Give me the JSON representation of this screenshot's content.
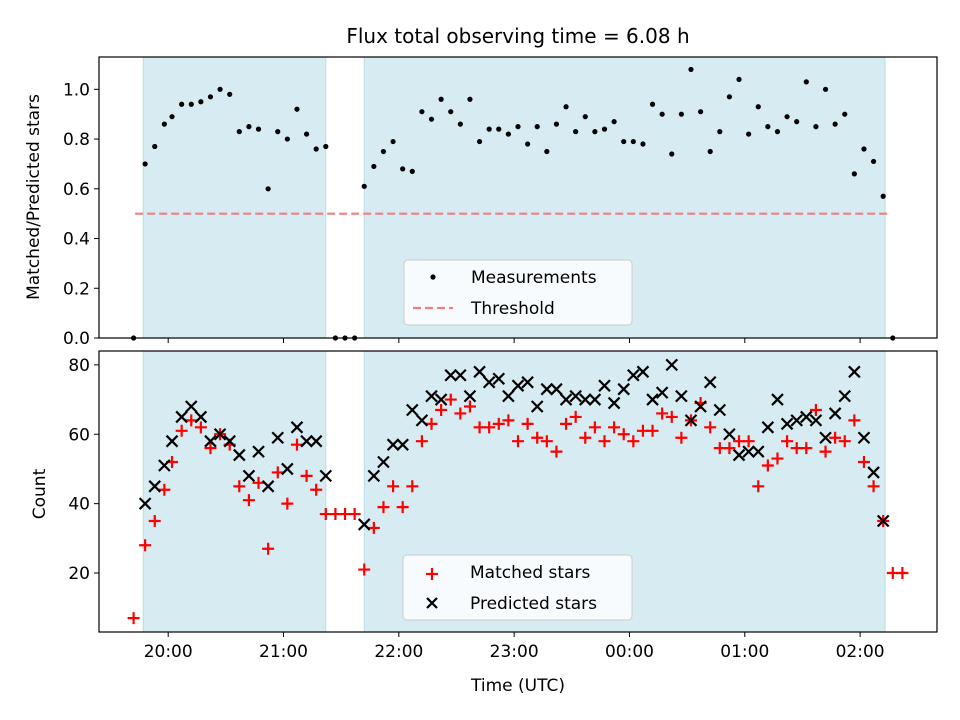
{
  "title": "Flux total observing time = 6.08 h",
  "xlabel": "Time (UTC)",
  "x_ticks": [
    "20:00",
    "21:00",
    "22:00",
    "23:00",
    "00:00",
    "01:00",
    "02:00"
  ],
  "colors": {
    "shade": "#add8e6",
    "threshold": "#f08080",
    "matched": "#ff0000",
    "predicted": "#000000",
    "measure": "#000000"
  },
  "chart_data": [
    {
      "type": "scatter",
      "ylabel": "Matched/Predicted stars",
      "yticks": [
        "0.0",
        "0.2",
        "0.4",
        "0.6",
        "0.8",
        "1.0"
      ],
      "ylim": [
        0,
        1.13
      ],
      "xlim": [
        "19:24",
        "02:40"
      ],
      "observing_windows": [
        [
          "19:47",
          "21:22"
        ],
        [
          "21:42",
          "02:13"
        ]
      ],
      "legend": [
        "Measurements",
        "Threshold"
      ],
      "threshold": 0.5,
      "series": [
        {
          "name": "Measurements",
          "points": [
            [
              "19:42",
              0.0
            ],
            [
              "19:48",
              0.7
            ],
            [
              "19:53",
              0.77
            ],
            [
              "19:58",
              0.86
            ],
            [
              "20:02",
              0.89
            ],
            [
              "20:07",
              0.94
            ],
            [
              "20:12",
              0.94
            ],
            [
              "20:17",
              0.95
            ],
            [
              "20:22",
              0.97
            ],
            [
              "20:27",
              1.0
            ],
            [
              "20:32",
              0.98
            ],
            [
              "20:37",
              0.83
            ],
            [
              "20:42",
              0.85
            ],
            [
              "20:47",
              0.84
            ],
            [
              "20:52",
              0.6
            ],
            [
              "20:57",
              0.83
            ],
            [
              "21:02",
              0.8
            ],
            [
              "21:07",
              0.92
            ],
            [
              "21:12",
              0.82
            ],
            [
              "21:17",
              0.76
            ],
            [
              "21:22",
              0.77
            ],
            [
              "21:27",
              0.0
            ],
            [
              "21:32",
              0.0
            ],
            [
              "21:37",
              0.0
            ],
            [
              "21:42",
              0.61
            ],
            [
              "21:47",
              0.69
            ],
            [
              "21:52",
              0.75
            ],
            [
              "21:57",
              0.79
            ],
            [
              "22:02",
              0.68
            ],
            [
              "22:07",
              0.67
            ],
            [
              "22:12",
              0.91
            ],
            [
              "22:17",
              0.88
            ],
            [
              "22:22",
              0.96
            ],
            [
              "22:27",
              0.91
            ],
            [
              "22:32",
              0.86
            ],
            [
              "22:37",
              0.96
            ],
            [
              "22:42",
              0.79
            ],
            [
              "22:47",
              0.84
            ],
            [
              "22:52",
              0.84
            ],
            [
              "22:57",
              0.82
            ],
            [
              "23:02",
              0.85
            ],
            [
              "23:07",
              0.78
            ],
            [
              "23:12",
              0.85
            ],
            [
              "23:17",
              0.75
            ],
            [
              "23:22",
              0.86
            ],
            [
              "23:27",
              0.93
            ],
            [
              "23:32",
              0.83
            ],
            [
              "23:37",
              0.89
            ],
            [
              "23:42",
              0.83
            ],
            [
              "23:47",
              0.84
            ],
            [
              "23:52",
              0.87
            ],
            [
              "23:57",
              0.79
            ],
            [
              "00:02",
              0.79
            ],
            [
              "00:07",
              0.78
            ],
            [
              "00:12",
              0.94
            ],
            [
              "00:17",
              0.9
            ],
            [
              "00:22",
              0.74
            ],
            [
              "00:27",
              0.9
            ],
            [
              "00:32",
              1.08
            ],
            [
              "00:37",
              0.91
            ],
            [
              "00:42",
              0.75
            ],
            [
              "00:47",
              0.83
            ],
            [
              "00:52",
              0.97
            ],
            [
              "00:57",
              1.04
            ],
            [
              "01:02",
              0.82
            ],
            [
              "01:07",
              0.93
            ],
            [
              "01:12",
              0.85
            ],
            [
              "01:17",
              0.83
            ],
            [
              "01:22",
              0.89
            ],
            [
              "01:27",
              0.87
            ],
            [
              "01:32",
              1.03
            ],
            [
              "01:37",
              0.85
            ],
            [
              "01:42",
              1.0
            ],
            [
              "01:47",
              0.86
            ],
            [
              "01:52",
              0.9
            ],
            [
              "01:57",
              0.66
            ],
            [
              "02:02",
              0.76
            ],
            [
              "02:07",
              0.71
            ],
            [
              "02:12",
              0.57
            ],
            [
              "02:17",
              0.0
            ]
          ]
        }
      ]
    },
    {
      "type": "scatter",
      "ylabel": "Count",
      "yticks": [
        "20",
        "40",
        "60",
        "80"
      ],
      "ylim": [
        3,
        84
      ],
      "xlim": [
        "19:24",
        "02:40"
      ],
      "observing_windows": [
        [
          "19:47",
          "21:22"
        ],
        [
          "21:42",
          "02:13"
        ]
      ],
      "legend": [
        "Matched stars",
        "Predicted stars"
      ],
      "series": [
        {
          "name": "Matched stars",
          "points": [
            [
              "19:42",
              7
            ],
            [
              "19:48",
              28
            ],
            [
              "19:53",
              35
            ],
            [
              "19:58",
              44
            ],
            [
              "20:02",
              52
            ],
            [
              "20:07",
              61
            ],
            [
              "20:12",
              64
            ],
            [
              "20:17",
              62
            ],
            [
              "20:22",
              56
            ],
            [
              "20:27",
              60
            ],
            [
              "20:32",
              57
            ],
            [
              "20:37",
              45
            ],
            [
              "20:42",
              41
            ],
            [
              "20:47",
              46
            ],
            [
              "20:52",
              27
            ],
            [
              "20:57",
              49
            ],
            [
              "21:02",
              40
            ],
            [
              "21:07",
              57
            ],
            [
              "21:12",
              48
            ],
            [
              "21:17",
              44
            ],
            [
              "21:22",
              37
            ],
            [
              "21:27",
              37
            ],
            [
              "21:32",
              37
            ],
            [
              "21:37",
              37
            ],
            [
              "21:42",
              21
            ],
            [
              "21:47",
              33
            ],
            [
              "21:52",
              39
            ],
            [
              "21:57",
              45
            ],
            [
              "22:02",
              39
            ],
            [
              "22:07",
              45
            ],
            [
              "22:12",
              58
            ],
            [
              "22:17",
              63
            ],
            [
              "22:22",
              67
            ],
            [
              "22:27",
              70
            ],
            [
              "22:32",
              66
            ],
            [
              "22:37",
              68
            ],
            [
              "22:42",
              62
            ],
            [
              "22:47",
              62
            ],
            [
              "22:52",
              63
            ],
            [
              "22:57",
              64
            ],
            [
              "23:02",
              58
            ],
            [
              "23:07",
              63
            ],
            [
              "23:12",
              59
            ],
            [
              "23:17",
              58
            ],
            [
              "23:22",
              55
            ],
            [
              "23:27",
              63
            ],
            [
              "23:32",
              65
            ],
            [
              "23:37",
              59
            ],
            [
              "23:42",
              62
            ],
            [
              "23:47",
              58
            ],
            [
              "23:52",
              62
            ],
            [
              "23:57",
              60
            ],
            [
              "00:02",
              58
            ],
            [
              "00:07",
              61
            ],
            [
              "00:12",
              61
            ],
            [
              "00:17",
              66
            ],
            [
              "00:22",
              65
            ],
            [
              "00:27",
              59
            ],
            [
              "00:32",
              64
            ],
            [
              "00:37",
              69
            ],
            [
              "00:42",
              62
            ],
            [
              "00:47",
              56
            ],
            [
              "00:52",
              56
            ],
            [
              "00:57",
              58
            ],
            [
              "01:02",
              58
            ],
            [
              "01:07",
              45
            ],
            [
              "01:12",
              51
            ],
            [
              "01:17",
              53
            ],
            [
              "01:22",
              58
            ],
            [
              "01:27",
              56
            ],
            [
              "01:32",
              56
            ],
            [
              "01:37",
              67
            ],
            [
              "01:42",
              55
            ],
            [
              "01:47",
              59
            ],
            [
              "01:52",
              58
            ],
            [
              "01:57",
              64
            ],
            [
              "02:02",
              52
            ],
            [
              "02:07",
              45
            ],
            [
              "02:12",
              35
            ],
            [
              "02:17",
              20
            ],
            [
              "02:22",
              20
            ]
          ]
        },
        {
          "name": "Predicted stars",
          "points": [
            [
              "19:48",
              40
            ],
            [
              "19:53",
              45
            ],
            [
              "19:58",
              51
            ],
            [
              "20:02",
              58
            ],
            [
              "20:07",
              65
            ],
            [
              "20:12",
              68
            ],
            [
              "20:17",
              65
            ],
            [
              "20:22",
              58
            ],
            [
              "20:27",
              60
            ],
            [
              "20:32",
              58
            ],
            [
              "20:37",
              54
            ],
            [
              "20:42",
              48
            ],
            [
              "20:47",
              55
            ],
            [
              "20:52",
              45
            ],
            [
              "20:57",
              59
            ],
            [
              "21:02",
              50
            ],
            [
              "21:07",
              62
            ],
            [
              "21:12",
              58
            ],
            [
              "21:17",
              58
            ],
            [
              "21:22",
              48
            ],
            [
              "21:42",
              34
            ],
            [
              "21:47",
              48
            ],
            [
              "21:52",
              52
            ],
            [
              "21:57",
              57
            ],
            [
              "22:02",
              57
            ],
            [
              "22:07",
              67
            ],
            [
              "22:12",
              64
            ],
            [
              "22:17",
              71
            ],
            [
              "22:22",
              70
            ],
            [
              "22:27",
              77
            ],
            [
              "22:32",
              77
            ],
            [
              "22:37",
              71
            ],
            [
              "22:42",
              78
            ],
            [
              "22:47",
              75
            ],
            [
              "22:52",
              76
            ],
            [
              "22:57",
              71
            ],
            [
              "23:02",
              74
            ],
            [
              "23:07",
              75
            ],
            [
              "23:12",
              68
            ],
            [
              "23:17",
              73
            ],
            [
              "23:22",
              73
            ],
            [
              "23:27",
              70
            ],
            [
              "23:32",
              71
            ],
            [
              "23:37",
              70
            ],
            [
              "23:42",
              70
            ],
            [
              "23:47",
              74
            ],
            [
              "23:52",
              69
            ],
            [
              "23:57",
              73
            ],
            [
              "00:02",
              77
            ],
            [
              "00:07",
              78
            ],
            [
              "00:12",
              70
            ],
            [
              "00:17",
              72
            ],
            [
              "00:22",
              80
            ],
            [
              "00:27",
              71
            ],
            [
              "00:32",
              64
            ],
            [
              "00:37",
              68
            ],
            [
              "00:42",
              75
            ],
            [
              "00:47",
              67
            ],
            [
              "00:52",
              60
            ],
            [
              "00:57",
              54
            ],
            [
              "01:02",
              55
            ],
            [
              "01:07",
              55
            ],
            [
              "01:12",
              62
            ],
            [
              "01:17",
              70
            ],
            [
              "01:22",
              63
            ],
            [
              "01:27",
              64
            ],
            [
              "01:32",
              65
            ],
            [
              "01:37",
              64
            ],
            [
              "01:42",
              59
            ],
            [
              "01:47",
              66
            ],
            [
              "01:52",
              71
            ],
            [
              "01:57",
              78
            ],
            [
              "02:02",
              59
            ],
            [
              "02:07",
              49
            ],
            [
              "02:12",
              35
            ]
          ]
        }
      ]
    }
  ]
}
